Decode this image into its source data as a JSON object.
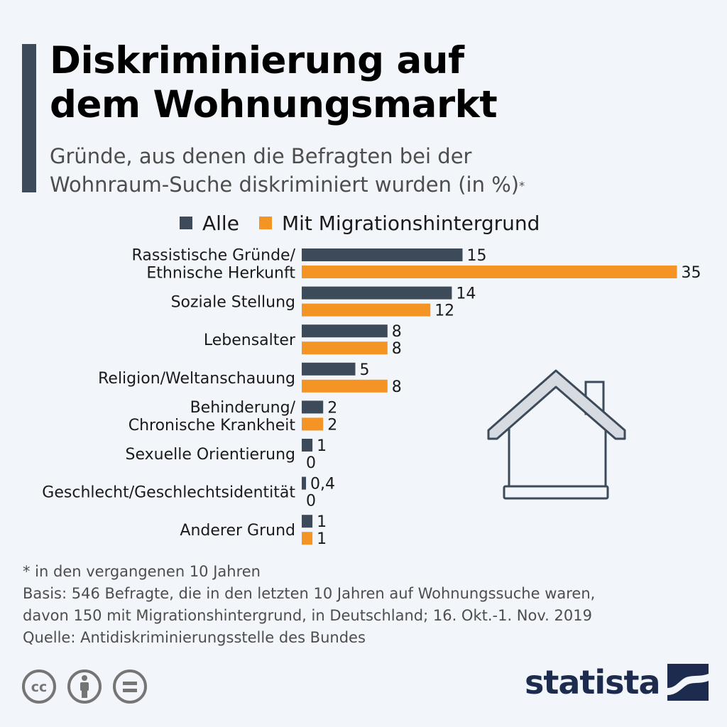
{
  "title_lines": [
    "Diskriminierung auf",
    "dem Wohnungsmarkt"
  ],
  "subtitle_lines": [
    "Gründe, aus denen die Befragten bei der",
    "Wohnraum-Suche diskriminiert wurden (in %)"
  ],
  "subtitle_marker": "*",
  "colors": {
    "alle": "#3d4a5a",
    "migration": "#f39424",
    "accent": "#3d4a5a"
  },
  "chart_data": {
    "type": "bar",
    "orientation": "horizontal",
    "categories": [
      [
        "Rassistische Gründe/",
        "Ethnische Herkunft"
      ],
      [
        "Soziale Stellung"
      ],
      [
        "Lebensalter"
      ],
      [
        "Religion/Weltanschauung"
      ],
      [
        "Behinderung/",
        "Chronische Krankheit"
      ],
      [
        "Sexuelle Orientierung"
      ],
      [
        "Geschlecht/Geschlechtsidentität"
      ],
      [
        "Anderer Grund"
      ]
    ],
    "series": [
      {
        "name": "Alle",
        "color": "#3d4a5a",
        "values": [
          15,
          14,
          8,
          5,
          2,
          1,
          0.4,
          1
        ],
        "labels": [
          "15",
          "14",
          "8",
          "5",
          "2",
          "1",
          "0,4",
          "1"
        ]
      },
      {
        "name": "Mit Migrationshintergrund",
        "color": "#f39424",
        "values": [
          35,
          12,
          8,
          8,
          2,
          0,
          0,
          1
        ],
        "labels": [
          "35",
          "12",
          "8",
          "8",
          "2",
          "0",
          "0",
          "1"
        ]
      }
    ],
    "xlim": [
      0,
      35
    ],
    "legend_position": "top",
    "grid": false
  },
  "footnote": [
    "* in den vergangenen 10 Jahren",
    "Basis: 546 Befragte, die in den letzten 10 Jahren auf Wohnungssuche waren,",
    "davon 150 mit Migrationshintergrund, in Deutschland; 16. Okt.-1. Nov. 2019",
    "Quelle: Antidiskriminierungsstelle des Bundes"
  ],
  "license_icons": [
    "cc-icon",
    "by-person-icon",
    "nd-equals-icon"
  ],
  "license_cc_text": "cc",
  "logo_text": "statista"
}
